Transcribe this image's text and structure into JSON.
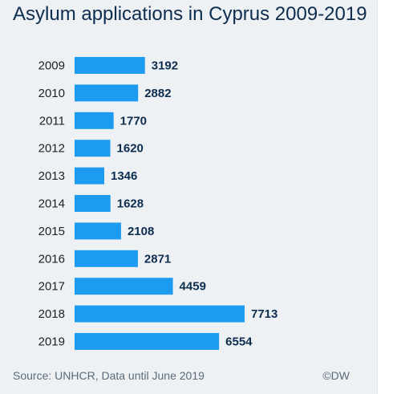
{
  "title": "Asylum applications in Cyprus 2009-2019",
  "source": "Source: UNHCR, Data until June 2019",
  "copyright": "©DW",
  "colors": {
    "bar": "#1d9bf0",
    "label": "#0d2d4f",
    "category": "#222222",
    "background": "#eef1f4"
  },
  "chart_data": {
    "type": "bar",
    "orientation": "horizontal",
    "title": "Asylum applications in Cyprus 2009-2019",
    "categories": [
      "2009",
      "2010",
      "2011",
      "2012",
      "2013",
      "2014",
      "2015",
      "2016",
      "2017",
      "2018",
      "2019"
    ],
    "values": [
      3192,
      2882,
      1770,
      1620,
      1346,
      1628,
      2108,
      2871,
      4459,
      7713,
      6554
    ],
    "xlim": [
      0,
      7713
    ],
    "grid": false,
    "legend": "none"
  }
}
